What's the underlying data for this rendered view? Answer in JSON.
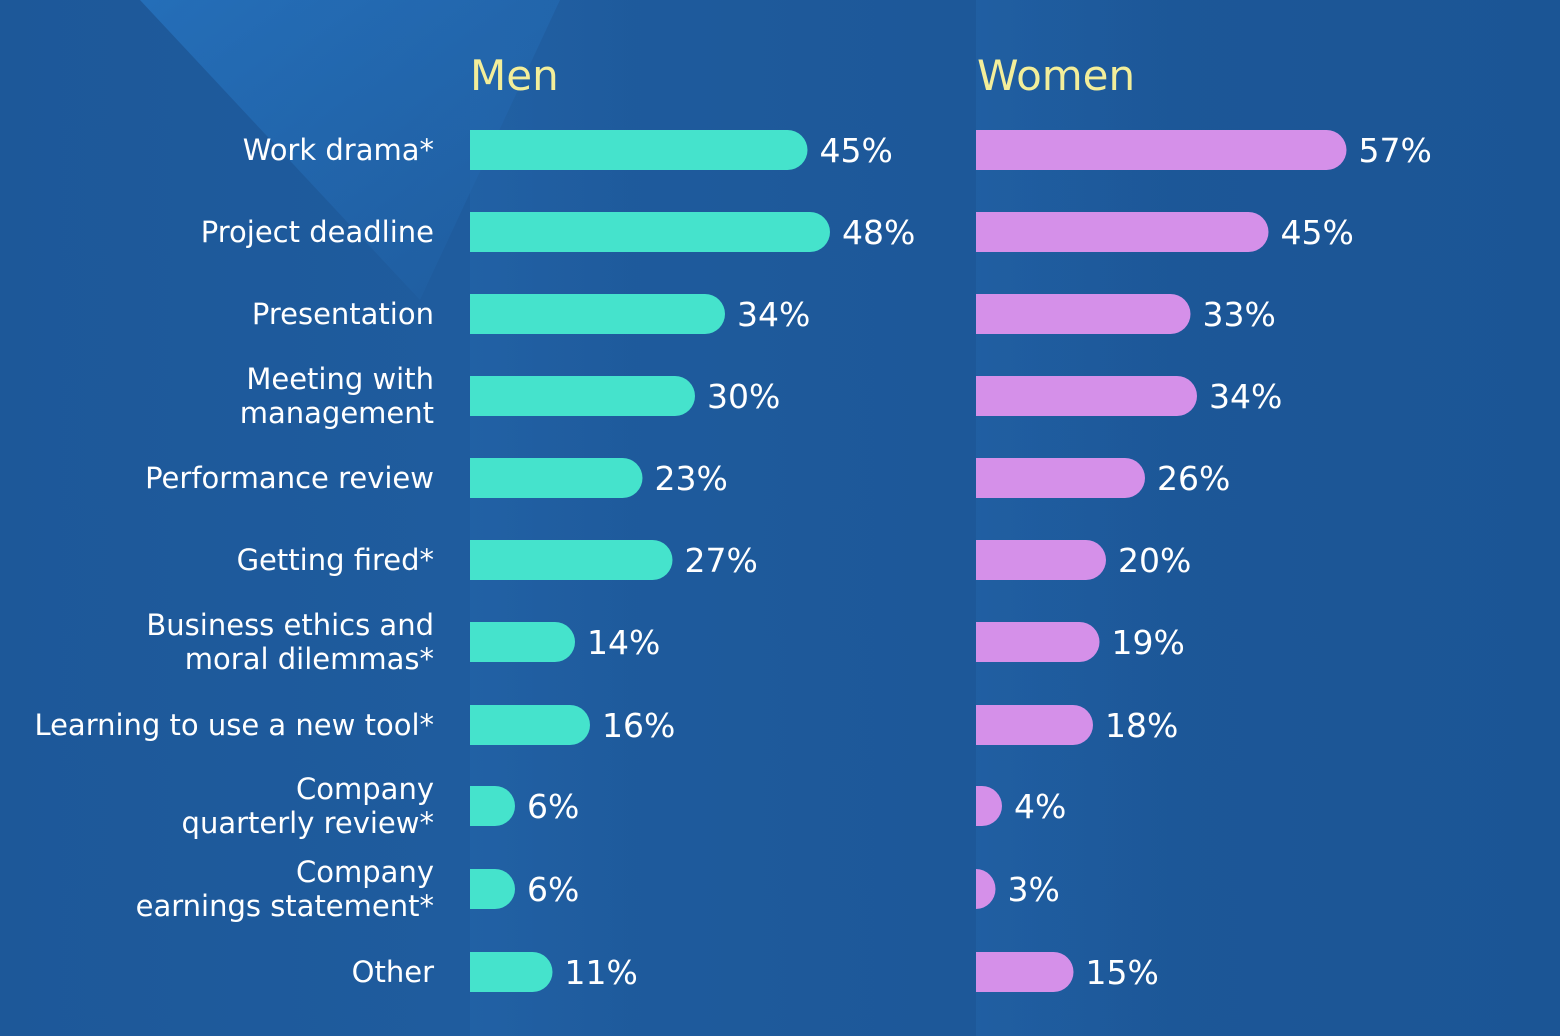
{
  "chart_data": {
    "type": "bar",
    "orientation": "horizontal",
    "layout": "side-by-side panels",
    "categories": [
      [
        "Work drama*"
      ],
      [
        "Project deadline"
      ],
      [
        "Presentation"
      ],
      [
        "Meeting with",
        "management"
      ],
      [
        "Performance review"
      ],
      [
        "Getting fired*"
      ],
      [
        "Business ethics and",
        "moral dilemmas*"
      ],
      [
        "Learning to use a new tool*"
      ],
      [
        "Company",
        "quarterly review*"
      ],
      [
        "Company",
        "earnings statement*"
      ],
      [
        "Other"
      ]
    ],
    "series": [
      {
        "name": "Men",
        "color": "#45e3cc",
        "values": [
          45,
          48,
          34,
          30,
          23,
          27,
          14,
          16,
          6,
          6,
          11
        ],
        "value_labels": [
          "45%",
          "48%",
          "34%",
          "30%",
          "23%",
          "27%",
          "14%",
          "16%",
          "6%",
          "6%",
          "11%"
        ]
      },
      {
        "name": "Women",
        "color": "#d590e9",
        "values": [
          57,
          45,
          33,
          34,
          26,
          20,
          19,
          18,
          4,
          3,
          15
        ],
        "value_labels": [
          "57%",
          "45%",
          "33%",
          "34%",
          "26%",
          "20%",
          "19%",
          "18%",
          "4%",
          "3%",
          "15%"
        ]
      }
    ],
    "unit": "%",
    "grid": false,
    "colors": {
      "background": "#1d5899",
      "panel_title": "#f3ee9a",
      "text": "#ffffff"
    }
  }
}
